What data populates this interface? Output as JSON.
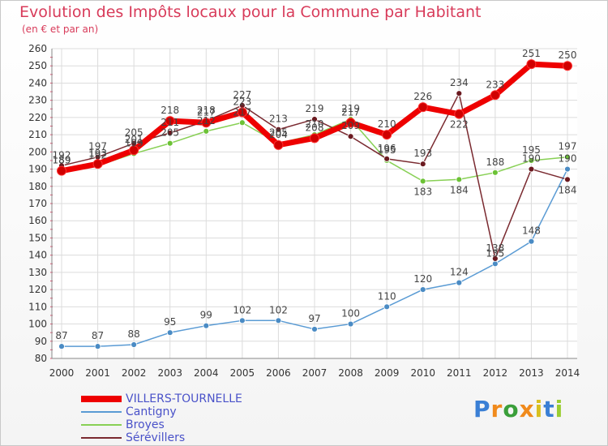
{
  "page": {
    "title": "Evolution des Impôts locaux pour la Commune par Habitant",
    "subtitle": "(en € et par an)"
  },
  "chart_data": {
    "type": "line",
    "title": "Evolution des Impôts locaux pour la Commune par Habitant",
    "subtitle": "(en € et par an)",
    "xlabel": "",
    "ylabel": "",
    "ylim": [
      80,
      260
    ],
    "ytick_step": 10,
    "grid": true,
    "legend_position": "bottom-left",
    "categories": [
      "2000",
      "2001",
      "2002",
      "2003",
      "2004",
      "2005",
      "2006",
      "2007",
      "2008",
      "2009",
      "2010",
      "2011",
      "2012",
      "2013",
      "2014"
    ],
    "series": [
      {
        "name": "VILLERS-TOURNELLE",
        "color": "#ee0000",
        "marker": "#c00000",
        "values": [
          189,
          193,
          201,
          218,
          217,
          223,
          204,
          208,
          217,
          210,
          226,
          222,
          233,
          251,
          250
        ],
        "label_offset": [
          0,
          0,
          0,
          0,
          0,
          0,
          0,
          0,
          0,
          0,
          0,
          1,
          0,
          0,
          0
        ]
      },
      {
        "name": "Cantigny",
        "color": "#5a9bd4",
        "marker": "#4a8bc4",
        "values": [
          87,
          87,
          88,
          95,
          99,
          102,
          102,
          97,
          100,
          110,
          120,
          124,
          135,
          148,
          190
        ],
        "label_offset": [
          0,
          0,
          0,
          0,
          0,
          0,
          0,
          0,
          0,
          0,
          0,
          0,
          0,
          0,
          0
        ]
      },
      {
        "name": "Broyes",
        "color": "#88d055",
        "marker": "#6cc236",
        "values": [
          189,
          192,
          199,
          205,
          212,
          217,
          205,
          210,
          219,
          195,
          183,
          184,
          188,
          195,
          197
        ],
        "label_offset": [
          0,
          0,
          0,
          0,
          0,
          0,
          0,
          0,
          0,
          0,
          1,
          1,
          0,
          0,
          0
        ]
      },
      {
        "name": "Sérévillers",
        "color": "#7a2a30",
        "marker": "#6b1a20",
        "values": [
          192,
          197,
          205,
          211,
          218,
          227,
          213,
          219,
          209,
          196,
          193,
          234,
          138,
          190,
          184
        ],
        "label_offset": [
          0,
          0,
          0,
          0,
          0,
          0,
          0,
          0,
          0,
          0,
          0,
          0,
          0,
          0,
          1
        ]
      }
    ]
  },
  "legend": {
    "items": [
      {
        "label": "VILLERS-TOURNELLE",
        "color": "#ee0000"
      },
      {
        "label": "Cantigny",
        "color": "#5a9bd4"
      },
      {
        "label": "Broyes",
        "color": "#88d055"
      },
      {
        "label": "Sérévillers",
        "color": "#7a2a30"
      }
    ]
  },
  "brand": {
    "logo_letters": [
      "P",
      "r",
      "o",
      "x",
      "i",
      "t",
      "i"
    ],
    "logo_colors": [
      "#3a7fd5",
      "#f08a1c",
      "#3a9f3a",
      "#f08a1c",
      "#d8c020",
      "#3a7fd5",
      "#9acd32"
    ]
  }
}
